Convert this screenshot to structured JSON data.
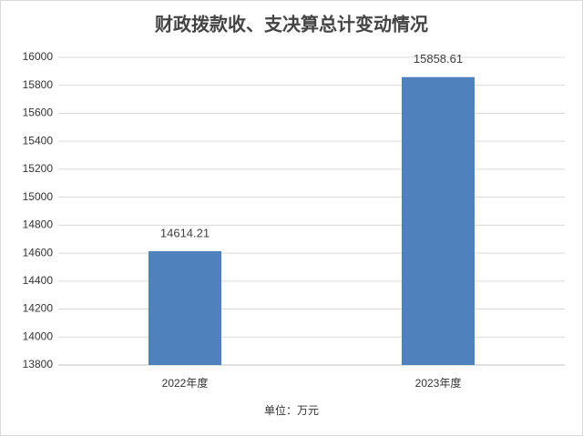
{
  "chart_data": {
    "type": "bar",
    "title": "财政拨款收、支决算总计变动情况",
    "categories": [
      "2022年度",
      "2023年度"
    ],
    "values": [
      14614.21,
      15858.61
    ],
    "color": "#4f81bd",
    "x_label": "单位：万元",
    "ylim": [
      13800,
      16000
    ],
    "yticks": [
      13800,
      14000,
      14200,
      14400,
      14600,
      14800,
      15000,
      15200,
      15400,
      15600,
      15800,
      16000
    ],
    "grid": true
  }
}
